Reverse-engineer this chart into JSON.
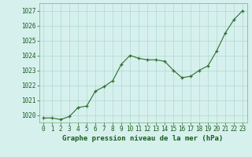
{
  "x": [
    0,
    1,
    2,
    3,
    4,
    5,
    6,
    7,
    8,
    9,
    10,
    11,
    12,
    13,
    14,
    15,
    16,
    17,
    18,
    19,
    20,
    21,
    22,
    23
  ],
  "y": [
    1019.8,
    1019.8,
    1019.7,
    1019.9,
    1020.5,
    1020.6,
    1021.6,
    1021.9,
    1022.3,
    1023.4,
    1024.0,
    1023.8,
    1023.7,
    1023.7,
    1023.6,
    1023.0,
    1022.5,
    1022.6,
    1023.0,
    1023.3,
    1024.3,
    1025.5,
    1026.4,
    1027.0
  ],
  "ylim_min": 1019.5,
  "ylim_max": 1027.5,
  "yticks": [
    1020,
    1021,
    1022,
    1023,
    1024,
    1025,
    1026,
    1027
  ],
  "xticks": [
    0,
    1,
    2,
    3,
    4,
    5,
    6,
    7,
    8,
    9,
    10,
    11,
    12,
    13,
    14,
    15,
    16,
    17,
    18,
    19,
    20,
    21,
    22,
    23
  ],
  "xlabel": "Graphe pression niveau de la mer (hPa)",
  "line_color": "#2d6e2d",
  "marker_color": "#2d6e2d",
  "bg_color": "#d6f0ee",
  "plot_bg_color": "#d6f0ee",
  "grid_color": "#b0d8d0",
  "tick_color": "#1a5c1a",
  "xlabel_color": "#1a5c1a",
  "border_color": "#8ab88a",
  "tick_fontsize": 5.5,
  "xlabel_fontsize": 6.5
}
